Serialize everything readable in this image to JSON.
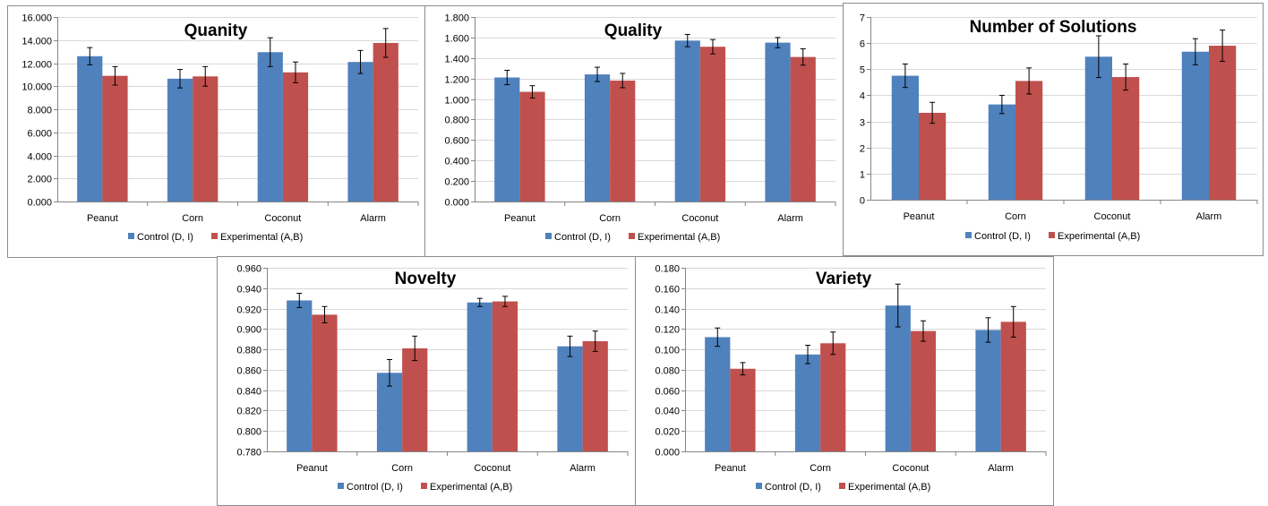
{
  "colors": {
    "control": "#4f81bd",
    "experimental": "#c0504d",
    "grid": "#d9d9d9",
    "axis": "#868686",
    "text": "#000000"
  },
  "chart_data": [
    {
      "id": "quantity",
      "type": "bar",
      "title": "Quanity",
      "categories": [
        "Peanut",
        "Corn",
        "Coconut",
        "Alarm"
      ],
      "ylim": [
        0,
        16
      ],
      "ystep": 2,
      "decimals": 3,
      "series": [
        {
          "name": "Control (D, I)",
          "values": [
            12.6,
            10.65,
            12.95,
            12.1
          ],
          "errors": [
            0.75,
            0.8,
            1.25,
            1.0
          ]
        },
        {
          "name": "Experimental (A,B)",
          "values": [
            10.9,
            10.85,
            11.2,
            13.75
          ],
          "errors": [
            0.8,
            0.85,
            0.9,
            1.25
          ]
        }
      ],
      "legend": "bottom",
      "grid": true
    },
    {
      "id": "quality",
      "type": "bar",
      "title": "Quality",
      "categories": [
        "Peanut",
        "Corn",
        "Coconut",
        "Alarm"
      ],
      "ylim": [
        0,
        1.8
      ],
      "ystep": 0.2,
      "decimals": 3,
      "series": [
        {
          "name": "Control (D, I)",
          "values": [
            1.21,
            1.24,
            1.57,
            1.55
          ],
          "errors": [
            0.07,
            0.07,
            0.06,
            0.05
          ]
        },
        {
          "name": "Experimental (A,B)",
          "values": [
            1.07,
            1.18,
            1.51,
            1.41
          ],
          "errors": [
            0.06,
            0.07,
            0.07,
            0.08
          ]
        }
      ],
      "legend": "bottom",
      "grid": true
    },
    {
      "id": "solutions",
      "type": "bar",
      "title": "Number of Solutions",
      "categories": [
        "Peanut",
        "Corn",
        "Coconut",
        "Alarm"
      ],
      "ylim": [
        0,
        7
      ],
      "ystep": 1,
      "decimals": 0,
      "series": [
        {
          "name": "Control (D, I)",
          "values": [
            4.75,
            3.65,
            5.48,
            5.67
          ],
          "errors": [
            0.45,
            0.35,
            0.8,
            0.5
          ]
        },
        {
          "name": "Experimental (A,B)",
          "values": [
            3.33,
            4.55,
            4.7,
            5.9
          ],
          "errors": [
            0.4,
            0.5,
            0.5,
            0.6
          ]
        }
      ],
      "legend": "bottom",
      "grid": true
    },
    {
      "id": "novelty",
      "type": "bar",
      "title": "Novelty",
      "categories": [
        "Peanut",
        "Corn",
        "Coconut",
        "Alarm"
      ],
      "ylim": [
        0.78,
        0.96
      ],
      "ystep": 0.02,
      "decimals": 3,
      "series": [
        {
          "name": "Control (D, I)",
          "values": [
            0.928,
            0.857,
            0.926,
            0.883
          ],
          "errors": [
            0.007,
            0.013,
            0.004,
            0.01
          ]
        },
        {
          "name": "Experimental (A,B)",
          "values": [
            0.914,
            0.881,
            0.927,
            0.888
          ],
          "errors": [
            0.008,
            0.012,
            0.005,
            0.01
          ]
        }
      ],
      "legend": "bottom",
      "grid": true
    },
    {
      "id": "variety",
      "type": "bar",
      "title": "Variety",
      "categories": [
        "Peanut",
        "Corn",
        "Coconut",
        "Alarm"
      ],
      "ylim": [
        0,
        0.18
      ],
      "ystep": 0.02,
      "decimals": 3,
      "series": [
        {
          "name": "Control (D, I)",
          "values": [
            0.112,
            0.095,
            0.143,
            0.119
          ],
          "errors": [
            0.009,
            0.009,
            0.021,
            0.012
          ]
        },
        {
          "name": "Experimental (A,B)",
          "values": [
            0.081,
            0.106,
            0.118,
            0.127
          ],
          "errors": [
            0.006,
            0.011,
            0.01,
            0.015
          ]
        }
      ],
      "legend": "bottom",
      "grid": true
    }
  ]
}
